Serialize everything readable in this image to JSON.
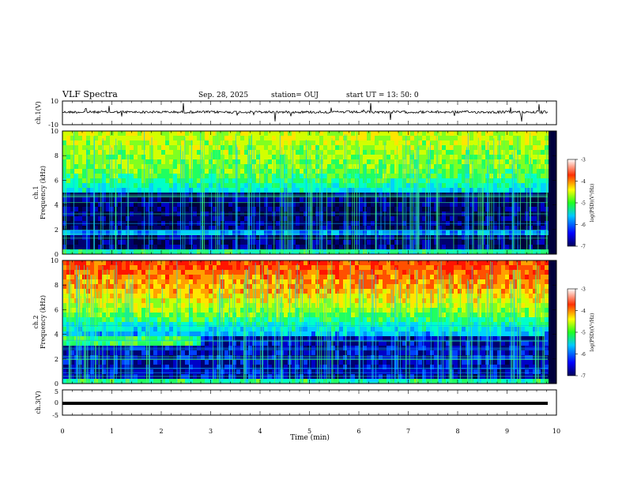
{
  "header": {
    "title": "VLF Spectra",
    "date": "Sep. 28, 2025",
    "station": "station= OUJ",
    "start": "start  UT  =   13: 50: 0"
  },
  "chart_data": [
    {
      "type": "line",
      "ylabel": "ch.1(V)",
      "ylim": [
        -10,
        10
      ],
      "ytick_labels": [
        "10",
        "-10"
      ],
      "xlim": [
        0,
        10
      ]
    },
    {
      "type": "heatmap",
      "ylabel_line1": "ch.1",
      "ylabel_line2": "Frequency (kHz)",
      "ylim": [
        0,
        10
      ],
      "ytick_labels": [
        "0",
        "2",
        "4",
        "6",
        "8",
        "10"
      ],
      "colorbar": {
        "label": "log(PSD)(V²/Hz)",
        "range": [
          -7,
          -3
        ],
        "tick_labels": [
          "-3",
          "-4",
          "-5",
          "-6",
          "-7"
        ]
      }
    },
    {
      "type": "heatmap",
      "ylabel_line1": "ch.2",
      "ylabel_line2": "Frequency (kHz)",
      "ylim": [
        0,
        10
      ],
      "ytick_labels": [
        "0",
        "2",
        "4",
        "6",
        "8",
        "10"
      ],
      "colorbar": {
        "label": "log(PSD)(V²/Hz)",
        "range": [
          -7,
          -3
        ],
        "tick_labels": [
          "-3",
          "-4",
          "-5",
          "-6",
          "-7"
        ]
      }
    },
    {
      "type": "line",
      "ylabel": "ch.3(V)",
      "ylim": [
        -5,
        5
      ],
      "ytick_labels": [
        "5",
        "0",
        "-5"
      ],
      "xlim": [
        0,
        10
      ],
      "xlabel": "Time  (min)",
      "xtick_labels": [
        "0",
        "1",
        "2",
        "3",
        "4",
        "5",
        "6",
        "7",
        "8",
        "9",
        "10"
      ]
    }
  ]
}
